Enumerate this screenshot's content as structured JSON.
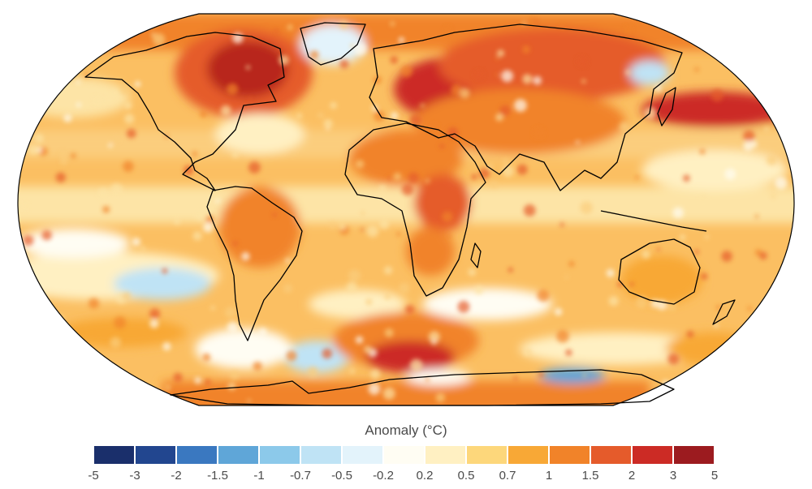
{
  "map": {
    "projection": "Robinson",
    "variable": "Anomaly (°C)"
  },
  "legend": {
    "title": "Anomaly (°C)",
    "ticks": [
      "-5",
      "-3",
      "-2",
      "-1.5",
      "-1",
      "-0.7",
      "-0.5",
      "-0.2",
      "0.2",
      "0.5",
      "0.7",
      "1",
      "1.5",
      "2",
      "3",
      "5"
    ],
    "colors": [
      "#1a2f6b",
      "#22468f",
      "#3a78c0",
      "#5fa6d8",
      "#8cc9ea",
      "#bfe3f5",
      "#e3f3fb",
      "#fffdf3",
      "#fff0c2",
      "#fdd77b",
      "#f8a836",
      "#f18329",
      "#e55b2b",
      "#cc2b25",
      "#9c1b1f"
    ]
  },
  "colors": {
    "background": "#ffffff",
    "coastline": "#000000",
    "ocean_base": "#fbbf62"
  }
}
